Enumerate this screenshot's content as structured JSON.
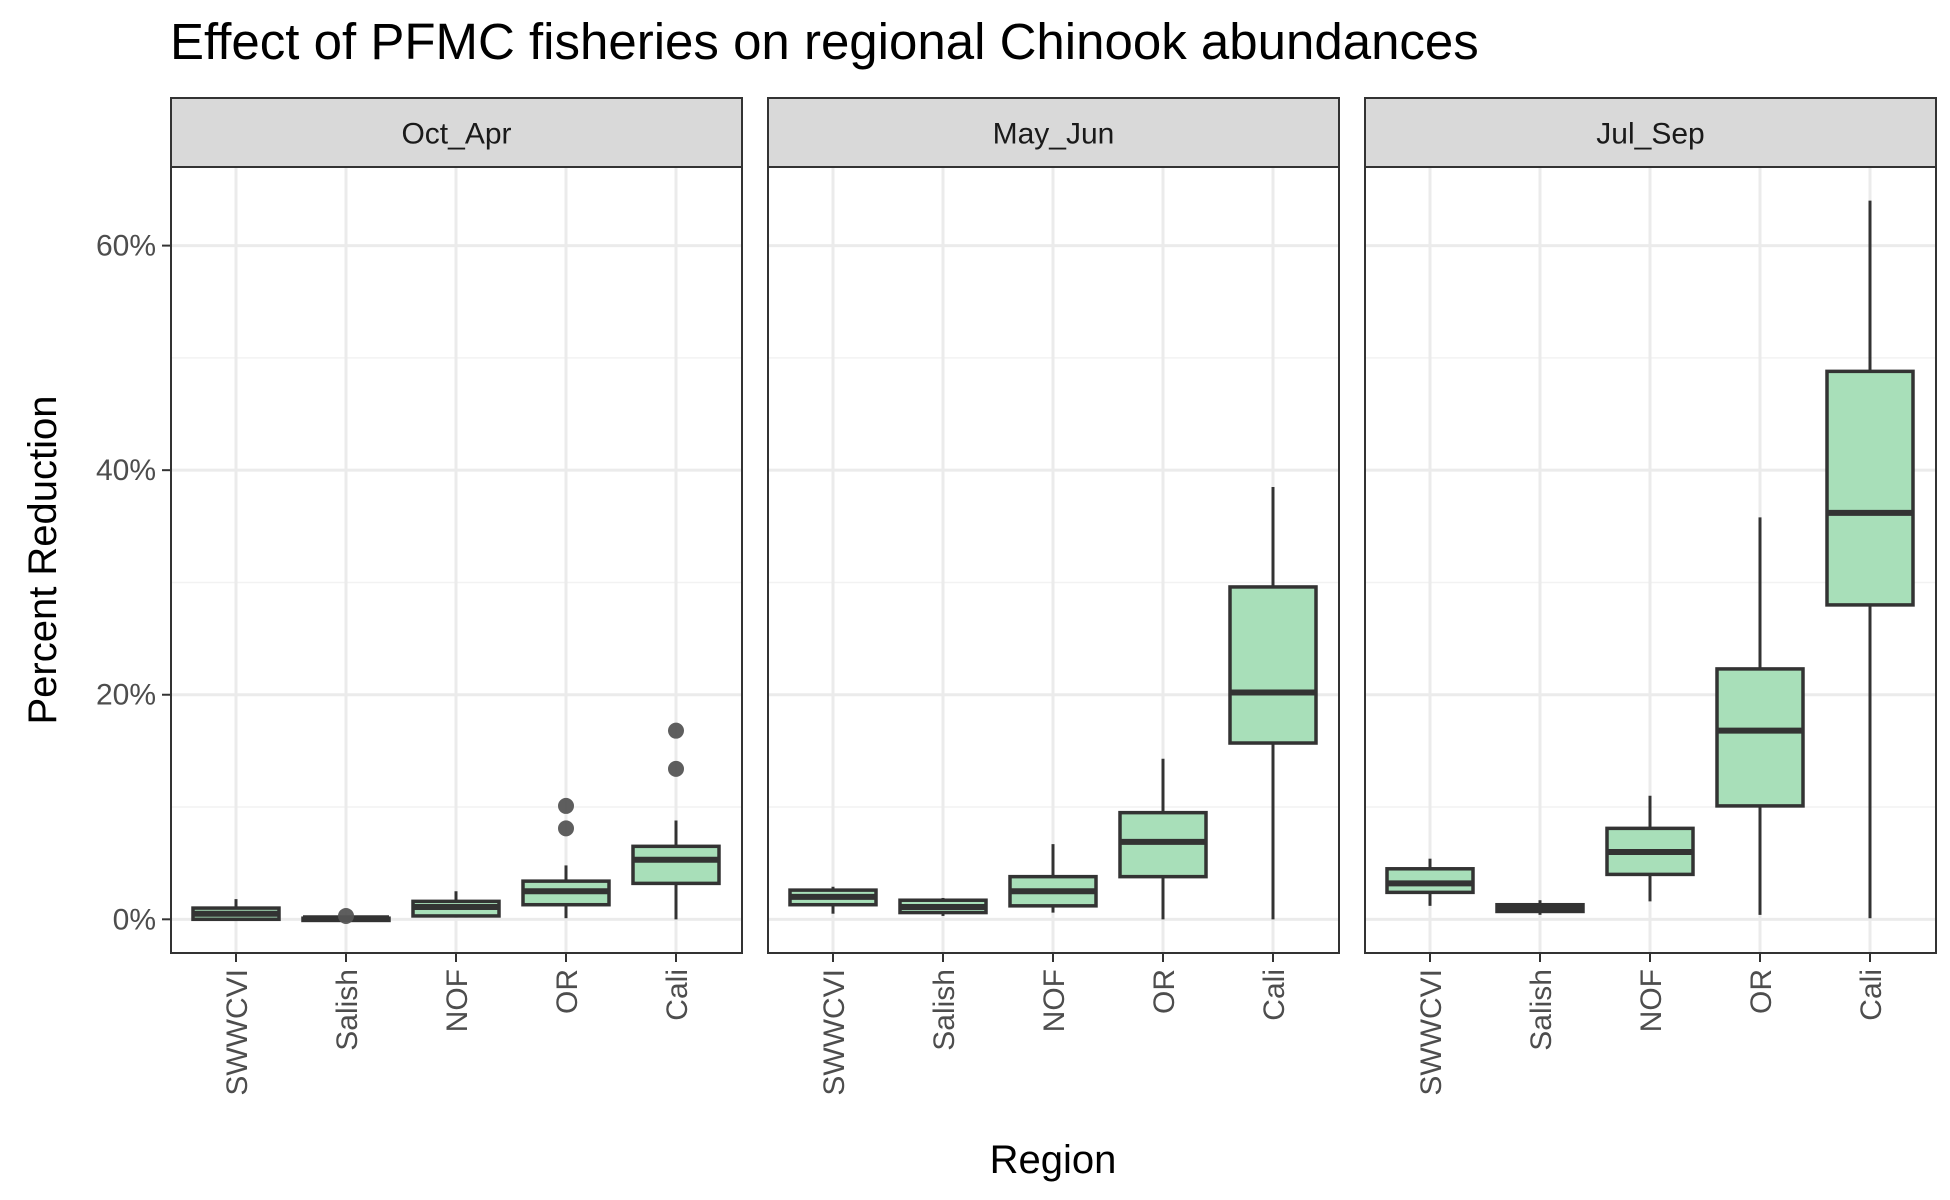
{
  "chart_data": {
    "type": "boxplot",
    "title": "Effect of PFMC fisheries on regional Chinook abundances",
    "xlabel": "Region",
    "ylabel": "Percent Reduction",
    "y_ticks": [
      0,
      20,
      40,
      60
    ],
    "y_tick_labels": [
      "0%",
      "20%",
      "40%",
      "60%"
    ],
    "ylim": [
      -3,
      67
    ],
    "grid": true,
    "fill_color": "#a8dfb9",
    "outline_color": "#333333",
    "outlier_color": "#555555",
    "categories": [
      "SWWCVI",
      "Salish",
      "NOF",
      "OR",
      "Cali"
    ],
    "panels": [
      {
        "name": "Oct_Apr",
        "boxes": [
          {
            "category": "SWWCVI",
            "min": 0.0,
            "q1": 0.0,
            "median": 0.5,
            "q3": 1.0,
            "max": 1.8,
            "outliers": []
          },
          {
            "category": "Salish",
            "min": -0.1,
            "q1": -0.1,
            "median": 0.1,
            "q3": 0.1,
            "max": 0.2,
            "outliers": [
              0.3
            ]
          },
          {
            "category": "NOF",
            "min": 0.2,
            "q1": 0.3,
            "median": 1.1,
            "q3": 1.6,
            "max": 2.5,
            "outliers": []
          },
          {
            "category": "OR",
            "min": 0.1,
            "q1": 1.3,
            "median": 2.5,
            "q3": 3.4,
            "max": 4.8,
            "outliers": [
              8.1,
              10.1
            ]
          },
          {
            "category": "Cali",
            "min": 0.0,
            "q1": 3.2,
            "median": 5.3,
            "q3": 6.5,
            "max": 8.8,
            "outliers": [
              13.4,
              16.8
            ]
          }
        ]
      },
      {
        "name": "May_Jun",
        "boxes": [
          {
            "category": "SWWCVI",
            "min": 0.5,
            "q1": 1.3,
            "median": 2.0,
            "q3": 2.6,
            "max": 2.9,
            "outliers": []
          },
          {
            "category": "Salish",
            "min": 0.3,
            "q1": 0.6,
            "median": 1.1,
            "q3": 1.7,
            "max": 1.9,
            "outliers": []
          },
          {
            "category": "NOF",
            "min": 0.6,
            "q1": 1.2,
            "median": 2.5,
            "q3": 3.8,
            "max": 6.7,
            "outliers": []
          },
          {
            "category": "OR",
            "min": 0.0,
            "q1": 3.8,
            "median": 6.9,
            "q3": 9.5,
            "max": 14.3,
            "outliers": []
          },
          {
            "category": "Cali",
            "min": 0.0,
            "q1": 15.7,
            "median": 20.2,
            "q3": 29.6,
            "max": 38.5,
            "outliers": []
          }
        ]
      },
      {
        "name": "Jul_Sep",
        "boxes": [
          {
            "category": "SWWCVI",
            "min": 1.2,
            "q1": 2.4,
            "median": 3.2,
            "q3": 4.5,
            "max": 5.4,
            "outliers": []
          },
          {
            "category": "Salish",
            "min": 0.4,
            "q1": 0.7,
            "median": 1.0,
            "q3": 1.3,
            "max": 1.7,
            "outliers": []
          },
          {
            "category": "NOF",
            "min": 1.6,
            "q1": 4.0,
            "median": 6.0,
            "q3": 8.1,
            "max": 11.0,
            "outliers": []
          },
          {
            "category": "OR",
            "min": 0.4,
            "q1": 10.1,
            "median": 16.8,
            "q3": 22.3,
            "max": 35.8,
            "outliers": []
          },
          {
            "category": "Cali",
            "min": 0.1,
            "q1": 28.0,
            "median": 36.2,
            "q3": 48.8,
            "max": 64.0,
            "outliers": []
          }
        ]
      }
    ]
  }
}
